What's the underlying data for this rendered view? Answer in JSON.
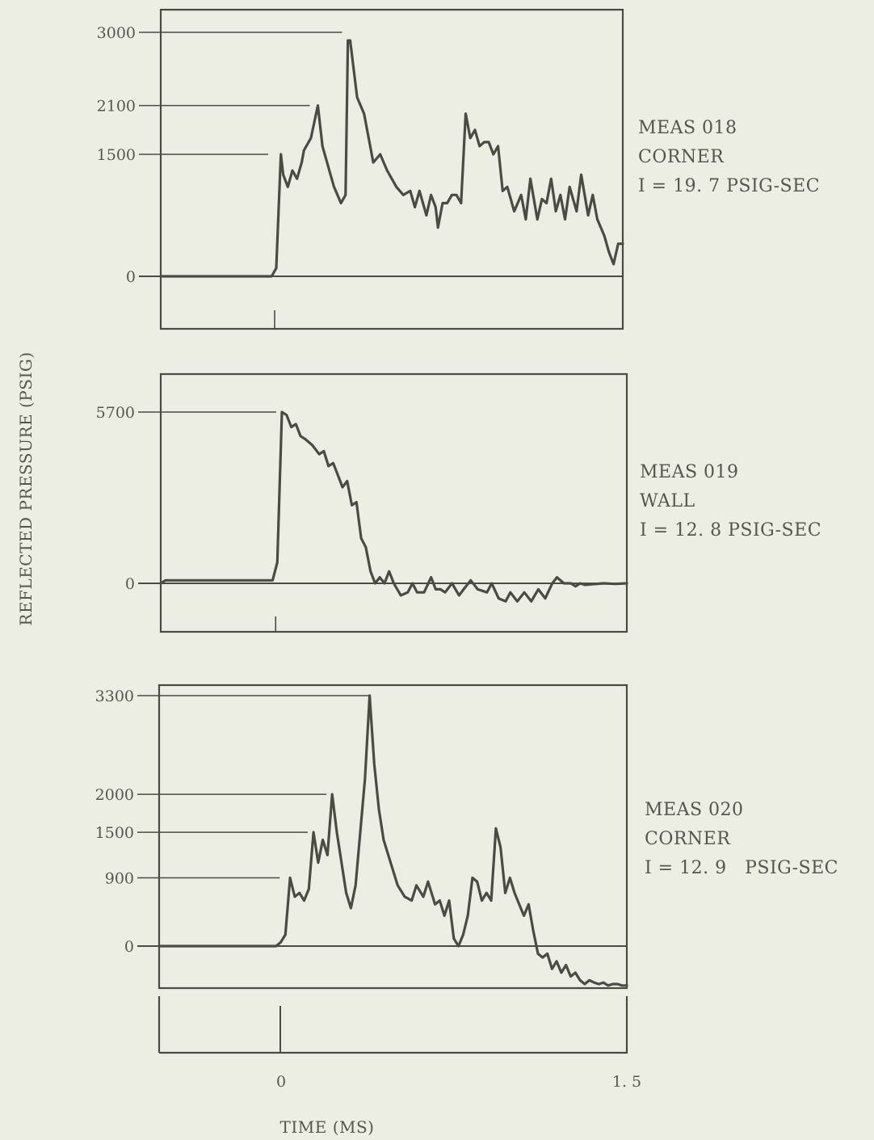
{
  "ink_color": "#4a4b45",
  "background_color": "#ecede3",
  "y_axis_title": "REFLECTED PRESSURE (PSIG)",
  "x_axis_title": "TIME (MS)",
  "x_tick_labels": [
    "0",
    "1. 5"
  ],
  "chart_data": [
    {
      "type": "line",
      "title": "",
      "xlabel": "TIME (MS)",
      "ylabel": "REFLECTED PRESSURE (PSIG)",
      "annotation": [
        "MEAS 018",
        "CORNER",
        "I = 19. 7 PSIG-SEC"
      ],
      "xlim": [
        -0.5,
        1.5
      ],
      "ylim": [
        -800,
        3300
      ],
      "yticks": [
        0,
        1500,
        2100,
        3000
      ],
      "ytick_labels": [
        "0",
        "1500",
        "2100",
        "3000"
      ],
      "peaks": [
        [
          0.0,
          1500
        ],
        [
          0.18,
          2100
        ],
        [
          0.32,
          3000
        ]
      ],
      "series": [
        {
          "x": [
            -0.5,
            -0.02,
            0.0,
            0.02,
            0.03,
            0.05,
            0.07,
            0.09,
            0.11,
            0.12,
            0.15,
            0.18,
            0.2,
            0.22,
            0.25,
            0.28,
            0.3,
            0.31,
            0.32,
            0.35,
            0.38,
            0.42,
            0.45,
            0.48,
            0.5,
            0.52,
            0.55,
            0.58,
            0.6,
            0.62,
            0.65,
            0.67,
            0.69,
            0.7,
            0.72,
            0.74,
            0.76,
            0.78,
            0.8,
            0.82,
            0.84,
            0.86,
            0.88,
            0.9,
            0.92,
            0.94,
            0.96,
            0.98,
            1.0,
            1.03,
            1.06,
            1.08,
            1.1,
            1.13,
            1.15,
            1.17,
            1.19,
            1.21,
            1.23,
            1.25,
            1.27,
            1.3,
            1.32,
            1.35,
            1.37,
            1.39,
            1.42,
            1.44,
            1.46,
            1.48,
            1.5
          ],
          "y": [
            0,
            0,
            100,
            1500,
            1250,
            1100,
            1300,
            1200,
            1400,
            1550,
            1700,
            2100,
            1600,
            1400,
            1100,
            900,
            1000,
            2900,
            2900,
            2200,
            2000,
            1400,
            1500,
            1300,
            1200,
            1100,
            1000,
            1050,
            850,
            1050,
            750,
            1000,
            850,
            600,
            900,
            900,
            1000,
            1000,
            900,
            2000,
            1700,
            1800,
            1600,
            1650,
            1650,
            1500,
            1600,
            1050,
            1100,
            800,
            1000,
            700,
            1200,
            700,
            950,
            900,
            1200,
            800,
            1000,
            700,
            1100,
            800,
            1250,
            750,
            1000,
            700,
            500,
            300,
            150,
            400,
            400
          ]
        }
      ]
    },
    {
      "type": "line",
      "title": "",
      "xlabel": "TIME (MS)",
      "ylabel": "REFLECTED PRESSURE (PSIG)",
      "annotation": [
        "MEAS 019",
        "WALL",
        "I = 12. 8 PSIG-SEC"
      ],
      "xlim": [
        -0.5,
        1.5
      ],
      "ylim": [
        -1600,
        6400
      ],
      "yticks": [
        0,
        5700
      ],
      "ytick_labels": [
        "0",
        "5700"
      ],
      "peaks": [
        [
          0.03,
          5700
        ]
      ],
      "series": [
        {
          "x": [
            -0.5,
            -0.48,
            -0.45,
            -0.02,
            0.0,
            0.02,
            0.04,
            0.06,
            0.08,
            0.1,
            0.12,
            0.15,
            0.18,
            0.2,
            0.22,
            0.24,
            0.26,
            0.28,
            0.3,
            0.32,
            0.34,
            0.36,
            0.38,
            0.4,
            0.42,
            0.44,
            0.46,
            0.48,
            0.5,
            0.53,
            0.56,
            0.58,
            0.6,
            0.63,
            0.66,
            0.68,
            0.7,
            0.72,
            0.75,
            0.78,
            0.8,
            0.83,
            0.86,
            0.9,
            0.92,
            0.95,
            0.98,
            1.0,
            1.03,
            1.06,
            1.09,
            1.12,
            1.15,
            1.18,
            1.2,
            1.23,
            1.26,
            1.28,
            1.3,
            1.32,
            1.35,
            1.4,
            1.45,
            1.5
          ],
          "y": [
            0,
            100,
            100,
            100,
            700,
            5700,
            5600,
            5200,
            5300,
            4900,
            4800,
            4600,
            4300,
            4400,
            3900,
            4000,
            3600,
            3200,
            3400,
            2600,
            2700,
            1500,
            1200,
            400,
            0,
            200,
            0,
            400,
            0,
            -400,
            -300,
            0,
            -300,
            -300,
            200,
            -200,
            -200,
            -300,
            0,
            -400,
            -200,
            100,
            -200,
            -300,
            0,
            -500,
            -600,
            -300,
            -600,
            -300,
            -600,
            -200,
            -500,
            0,
            200,
            0,
            0,
            -100,
            0,
            -50,
            -30,
            0,
            -20,
            0
          ]
        }
      ]
    },
    {
      "type": "line",
      "title": "",
      "xlabel": "TIME (MS)",
      "ylabel": "REFLECTED PRESSURE (PSIG)",
      "annotation": [
        "MEAS 020",
        "CORNER",
        "I = 12. 9   PSIG-SEC"
      ],
      "xlim": [
        -0.5,
        1.5
      ],
      "ylim": [
        -600,
        3500
      ],
      "yticks": [
        0,
        900,
        1500,
        2000,
        3300
      ],
      "ytick_labels": [
        "0",
        "900",
        "1500",
        "2000",
        "3300"
      ],
      "peaks": [
        [
          0.05,
          900
        ],
        [
          0.17,
          1500
        ],
        [
          0.25,
          2000
        ],
        [
          0.44,
          3300
        ]
      ],
      "series": [
        {
          "x": [
            -0.5,
            0.0,
            0.02,
            0.04,
            0.06,
            0.08,
            0.1,
            0.12,
            0.14,
            0.16,
            0.18,
            0.2,
            0.22,
            0.24,
            0.26,
            0.28,
            0.3,
            0.32,
            0.34,
            0.36,
            0.38,
            0.4,
            0.42,
            0.44,
            0.46,
            0.48,
            0.5,
            0.52,
            0.55,
            0.58,
            0.6,
            0.63,
            0.65,
            0.68,
            0.7,
            0.72,
            0.74,
            0.76,
            0.78,
            0.8,
            0.82,
            0.84,
            0.86,
            0.88,
            0.9,
            0.92,
            0.94,
            0.96,
            0.98,
            1.0,
            1.02,
            1.04,
            1.06,
            1.08,
            1.1,
            1.12,
            1.14,
            1.16,
            1.18,
            1.2,
            1.22,
            1.24,
            1.26,
            1.28,
            1.3,
            1.32,
            1.34,
            1.36,
            1.38,
            1.4,
            1.42,
            1.44,
            1.46,
            1.48,
            1.5
          ],
          "y": [
            0,
            0,
            50,
            150,
            900,
            650,
            700,
            600,
            750,
            1500,
            1100,
            1400,
            1200,
            2000,
            1500,
            1100,
            700,
            500,
            800,
            1500,
            2200,
            3300,
            2400,
            1800,
            1400,
            1200,
            1000,
            800,
            650,
            600,
            800,
            650,
            850,
            550,
            600,
            400,
            600,
            100,
            0,
            150,
            400,
            900,
            850,
            600,
            700,
            600,
            1550,
            1300,
            700,
            900,
            700,
            550,
            400,
            550,
            200,
            -100,
            -150,
            -100,
            -300,
            -200,
            -350,
            -250,
            -400,
            -350,
            -450,
            -500,
            -450,
            -480,
            -500,
            -480,
            -520,
            -500,
            -500,
            -520,
            -520
          ]
        }
      ]
    }
  ]
}
